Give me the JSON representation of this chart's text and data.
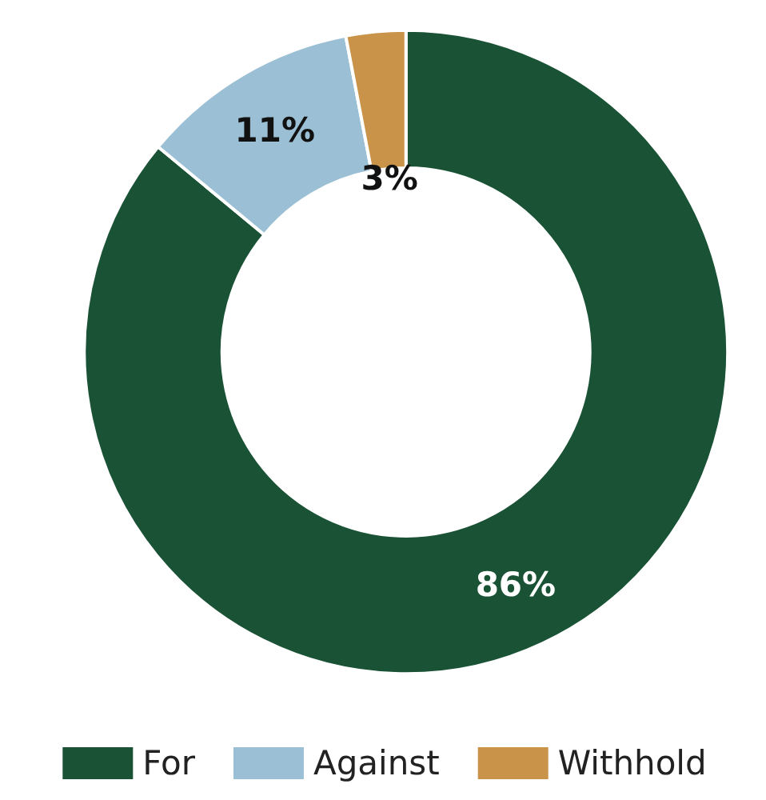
{
  "chart_data": {
    "type": "donut",
    "categories": [
      "For",
      "Against",
      "Withhold"
    ],
    "values": [
      86,
      11,
      3
    ],
    "colors": [
      "#1a5235",
      "#9bbfd4",
      "#c9944a"
    ],
    "value_labels": [
      "86%",
      "11%",
      "3%"
    ],
    "legend": "bottom"
  }
}
